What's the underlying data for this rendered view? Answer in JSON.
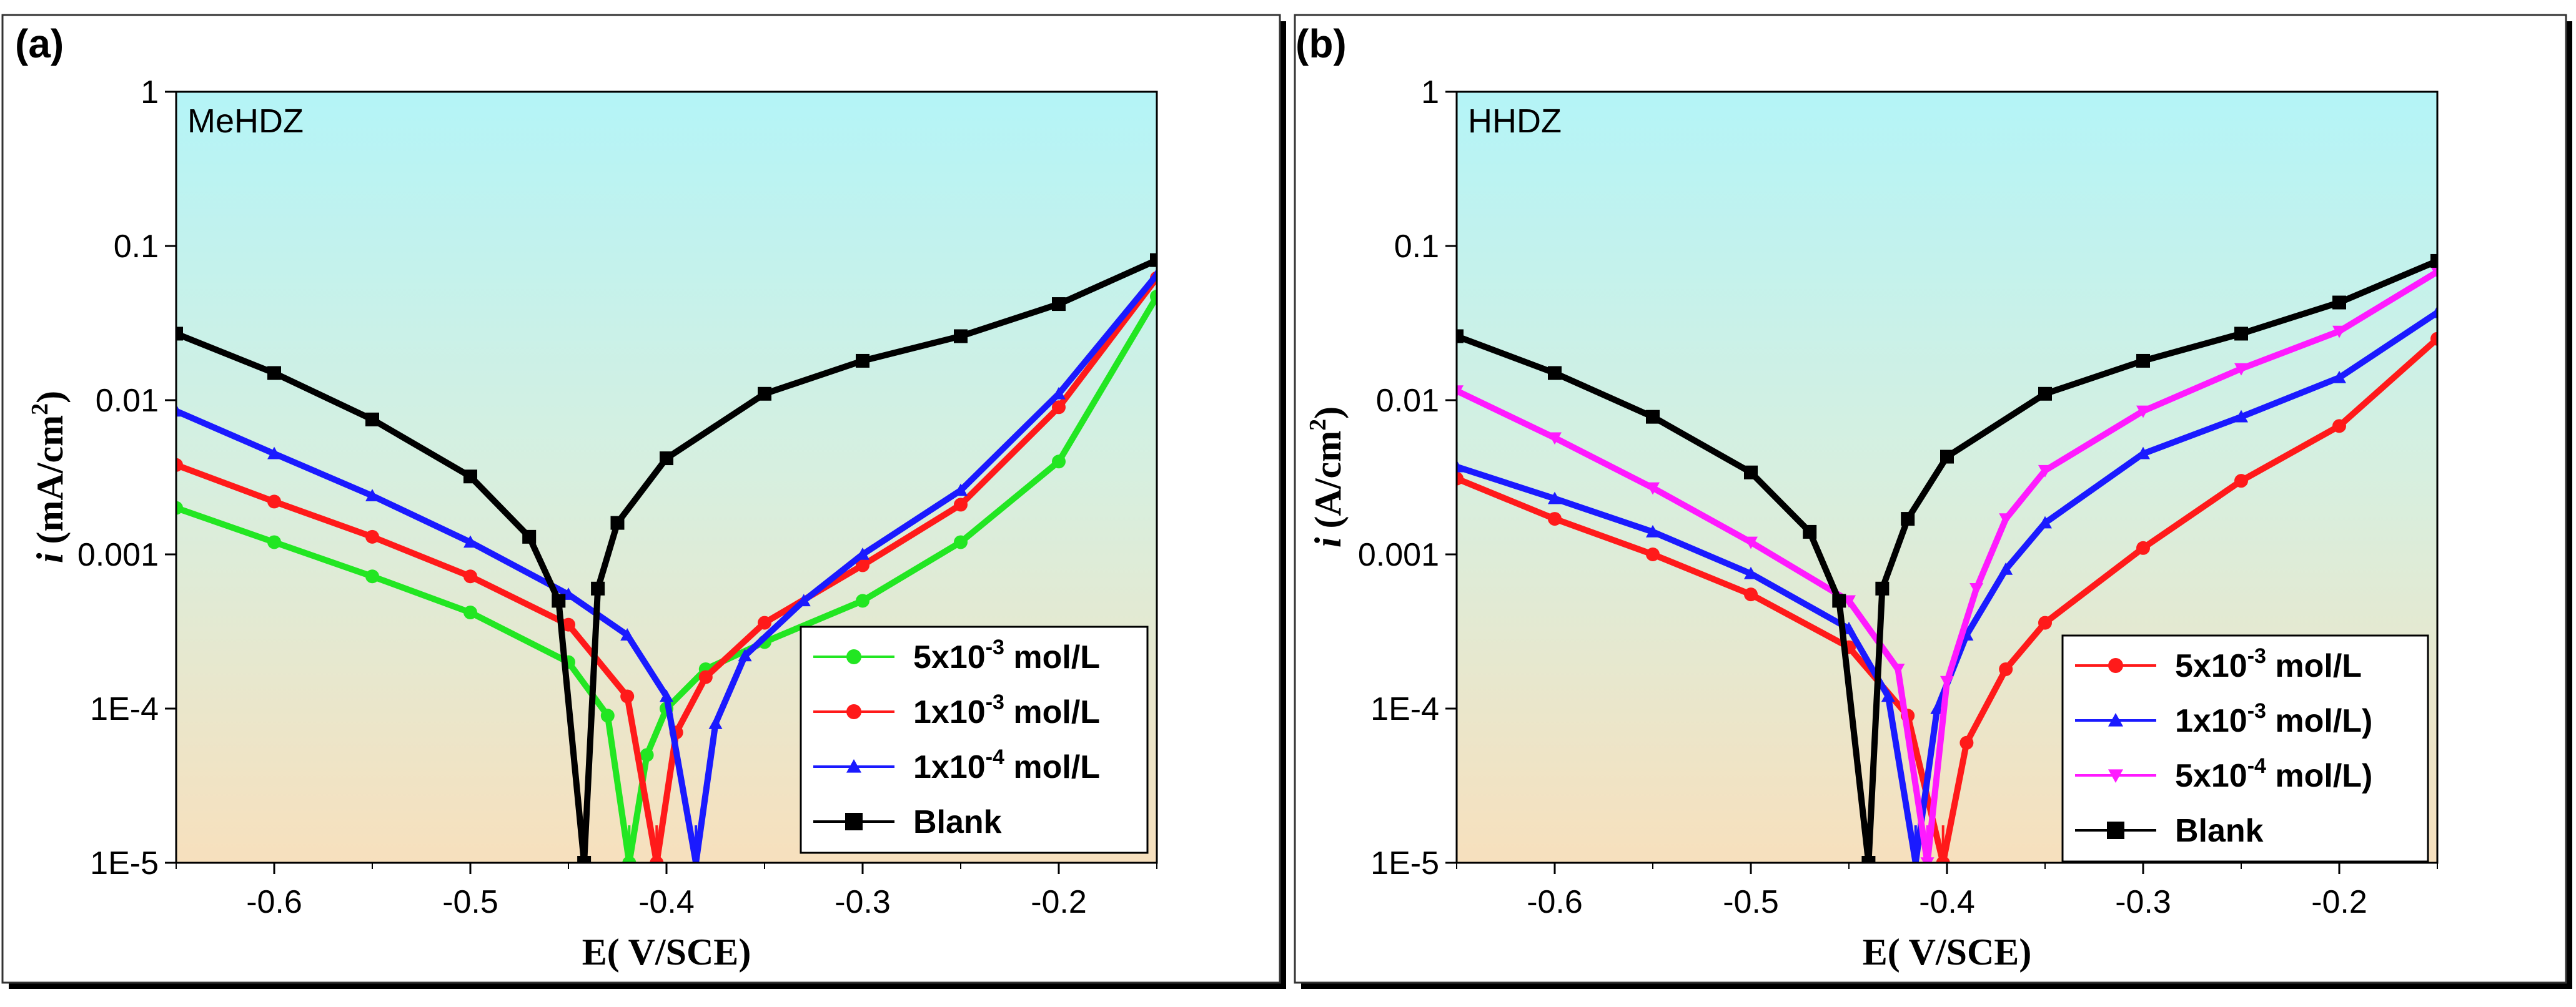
{
  "chart_data": [
    {
      "panel_label": "(a)",
      "type": "line",
      "title": "MeHDZ",
      "xlabel": "E( V/SCE)",
      "ylabel_italic": "i",
      "ylabel_rest": "(mA/cm",
      "ylabel_sup": "2",
      "ylabel_close": ")",
      "yscale": "log",
      "xlim": [
        -0.65,
        -0.15
      ],
      "ylim": [
        1e-05,
        1
      ],
      "xticks": [
        -0.6,
        -0.5,
        -0.4,
        -0.3,
        -0.2
      ],
      "xtick_labels": [
        "-0.6",
        "-0.5",
        "-0.4",
        "-0.3",
        "-0.2"
      ],
      "yticks": [
        1e-05,
        0.0001,
        0.001,
        0.01,
        0.1,
        1
      ],
      "ytick_labels": [
        "1E-5",
        "1E-4",
        "0.001",
        "0.01",
        "0.1",
        "1"
      ],
      "legend_position": "bottom-right",
      "series": [
        {
          "name": "5x10-3 mol/L",
          "legend_base": "5",
          "legend_times": "x10",
          "legend_exp": "-3",
          "legend_unit": " mol/L",
          "color": "#22e622",
          "marker": "circle",
          "ecorr": -0.419,
          "x": [
            -0.65,
            -0.6,
            -0.55,
            -0.5,
            -0.45,
            -0.43,
            -0.419,
            -0.41,
            -0.4,
            -0.38,
            -0.35,
            -0.3,
            -0.25,
            -0.2,
            -0.15
          ],
          "y": [
            0.002,
            0.0012,
            0.00072,
            0.00042,
            0.0002,
            9e-05,
            1e-05,
            5e-05,
            0.0001,
            0.00018,
            0.00027,
            0.0005,
            0.0012,
            0.004,
            0.047
          ]
        },
        {
          "name": "1x10-3 mol/L",
          "legend_base": "1",
          "legend_times": "x10",
          "legend_exp": "-3",
          "legend_unit": " mol/L",
          "color": "#ff1a1a",
          "marker": "circle",
          "ecorr": -0.405,
          "x": [
            -0.65,
            -0.6,
            -0.55,
            -0.5,
            -0.45,
            -0.42,
            -0.405,
            -0.395,
            -0.38,
            -0.35,
            -0.3,
            -0.25,
            -0.2,
            -0.15
          ],
          "y": [
            0.0038,
            0.0022,
            0.0013,
            0.00072,
            0.00035,
            0.00012,
            1e-05,
            7e-05,
            0.00016,
            0.00036,
            0.00085,
            0.0021,
            0.009,
            0.062
          ]
        },
        {
          "name": "1x10-4 mol/L",
          "legend_base": "1",
          "legend_times": "x10",
          "legend_exp": "-4",
          "legend_unit": " mol/L",
          "color": "#1a1aff",
          "marker": "triangle",
          "ecorr": -0.385,
          "x": [
            -0.65,
            -0.6,
            -0.55,
            -0.5,
            -0.45,
            -0.42,
            -0.4,
            -0.385,
            -0.375,
            -0.36,
            -0.33,
            -0.3,
            -0.25,
            -0.2,
            -0.15
          ],
          "y": [
            0.0085,
            0.0045,
            0.0024,
            0.0012,
            0.00055,
            0.0003,
            0.00012,
            1e-05,
            8e-05,
            0.00022,
            0.0005,
            0.001,
            0.0026,
            0.011,
            0.065
          ]
        },
        {
          "name": "Blank",
          "legend_base": "Blank",
          "legend_times": "",
          "legend_exp": "",
          "legend_unit": "",
          "color": "#000000",
          "marker": "square",
          "ecorr": -0.442,
          "x": [
            -0.65,
            -0.6,
            -0.55,
            -0.5,
            -0.47,
            -0.455,
            -0.442,
            -0.435,
            -0.425,
            -0.4,
            -0.35,
            -0.3,
            -0.25,
            -0.2,
            -0.15
          ],
          "y": [
            0.027,
            0.015,
            0.0075,
            0.0032,
            0.0013,
            0.0005,
            1e-05,
            0.0006,
            0.0016,
            0.0042,
            0.011,
            0.018,
            0.026,
            0.042,
            0.081
          ]
        }
      ]
    },
    {
      "panel_label": "(b)",
      "type": "line",
      "title": "HHDZ",
      "xlabel": "E( V/SCE)",
      "ylabel_italic": "i",
      "ylabel_rest": "(A/cm",
      "ylabel_sup": "2",
      "ylabel_close": ")",
      "yscale": "log",
      "xlim": [
        -0.65,
        -0.15
      ],
      "ylim": [
        1e-05,
        1
      ],
      "xticks": [
        -0.6,
        -0.5,
        -0.4,
        -0.3,
        -0.2
      ],
      "xtick_labels": [
        "-0.6",
        "-0.5",
        "-0.4",
        "-0.3",
        "-0.2"
      ],
      "yticks": [
        1e-05,
        0.0001,
        0.001,
        0.01,
        0.1,
        1
      ],
      "ytick_labels": [
        "1E-5",
        "1E-4",
        "0.001",
        "0.01",
        "0.1",
        "1"
      ],
      "legend_position": "bottom-right",
      "series": [
        {
          "name": "5x10-3 mol/L",
          "legend_base": "5",
          "legend_times": "x10",
          "legend_exp": "-3",
          "legend_unit": " mol/L",
          "color": "#ff1a1a",
          "marker": "circle",
          "ecorr": -0.402,
          "x": [
            -0.65,
            -0.6,
            -0.55,
            -0.5,
            -0.45,
            -0.42,
            -0.402,
            -0.39,
            -0.37,
            -0.35,
            -0.3,
            -0.25,
            -0.2,
            -0.15
          ],
          "y": [
            0.0031,
            0.0017,
            0.001,
            0.00055,
            0.00025,
            9e-05,
            1e-05,
            6e-05,
            0.00018,
            0.00036,
            0.0011,
            0.003,
            0.0068,
            0.025
          ]
        },
        {
          "name": "1x10-3 mol/L)",
          "legend_base": "1",
          "legend_times": "x10",
          "legend_exp": "-3",
          "legend_unit": " mol/L)",
          "color": "#1a1aff",
          "marker": "triangle",
          "ecorr": -0.416,
          "x": [
            -0.65,
            -0.6,
            -0.55,
            -0.5,
            -0.45,
            -0.43,
            -0.416,
            -0.405,
            -0.39,
            -0.37,
            -0.35,
            -0.3,
            -0.25,
            -0.2,
            -0.15
          ],
          "y": [
            0.0037,
            0.0023,
            0.0014,
            0.00075,
            0.00033,
            0.00012,
            1e-05,
            0.0001,
            0.0003,
            0.0008,
            0.0016,
            0.0045,
            0.0078,
            0.014,
            0.037
          ]
        },
        {
          "name": "5x10-4 mol/L)",
          "legend_base": "5",
          "legend_times": "x10",
          "legend_exp": "-4",
          "legend_unit": " mol/L)",
          "color": "#ff1aff",
          "marker": "triangle-down",
          "ecorr": -0.41,
          "x": [
            -0.65,
            -0.6,
            -0.55,
            -0.5,
            -0.45,
            -0.425,
            -0.41,
            -0.4,
            -0.385,
            -0.37,
            -0.35,
            -0.3,
            -0.25,
            -0.2,
            -0.15
          ],
          "y": [
            0.0115,
            0.0057,
            0.0027,
            0.0012,
            0.0005,
            0.00018,
            1e-05,
            0.00015,
            0.0006,
            0.0017,
            0.0035,
            0.0085,
            0.016,
            0.028,
            0.068
          ]
        },
        {
          "name": "Blank",
          "legend_base": "Blank",
          "legend_times": "",
          "legend_exp": "",
          "legend_unit": "",
          "color": "#000000",
          "marker": "square",
          "ecorr": -0.44,
          "x": [
            -0.65,
            -0.6,
            -0.55,
            -0.5,
            -0.47,
            -0.455,
            -0.44,
            -0.433,
            -0.42,
            -0.4,
            -0.35,
            -0.3,
            -0.25,
            -0.2,
            -0.15
          ],
          "y": [
            0.026,
            0.015,
            0.0078,
            0.0034,
            0.0014,
            0.0005,
            1e-05,
            0.0006,
            0.0017,
            0.0043,
            0.011,
            0.018,
            0.027,
            0.043,
            0.08
          ]
        }
      ]
    }
  ]
}
